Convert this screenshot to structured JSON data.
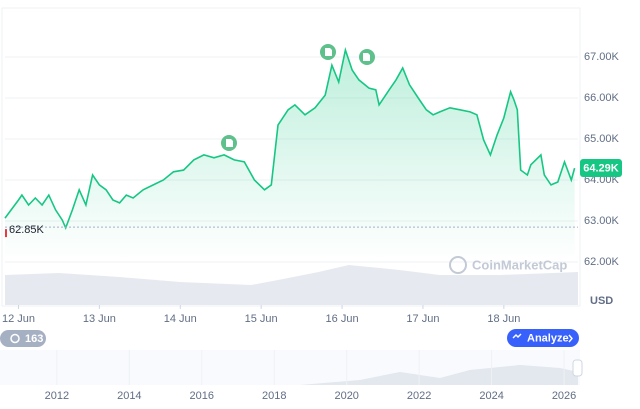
{
  "chart_data": {
    "type": "line",
    "color": "#16c784",
    "x": [
      -4,
      0,
      1,
      3,
      5,
      7,
      9,
      11,
      13,
      14,
      16,
      18,
      20,
      22,
      24,
      26,
      28,
      30,
      32,
      34,
      37,
      40,
      43,
      46,
      49,
      52,
      55,
      58,
      61,
      64,
      67,
      70,
      73,
      75,
      77,
      80,
      82,
      85,
      88,
      91,
      93,
      95,
      97,
      99,
      101,
      104,
      106,
      107,
      110,
      112,
      114,
      116,
      119,
      121,
      123,
      125,
      128,
      131,
      134,
      136,
      138,
      140,
      142,
      144,
      146,
      147,
      148,
      149,
      151,
      152,
      155,
      156,
      158,
      160,
      162,
      164,
      165
    ],
    "values": [
      63.07,
      63.51,
      63.63,
      63.39,
      63.56,
      63.39,
      63.63,
      63.27,
      63.02,
      62.83,
      63.27,
      63.76,
      63.39,
      64.12,
      63.88,
      63.76,
      63.51,
      63.44,
      63.63,
      63.56,
      63.76,
      63.88,
      64.0,
      64.2,
      64.24,
      64.49,
      64.61,
      64.54,
      64.61,
      64.49,
      64.44,
      64.0,
      63.76,
      63.88,
      65.34,
      65.71,
      65.83,
      65.59,
      65.76,
      66.07,
      66.8,
      66.39,
      67.17,
      66.68,
      66.44,
      66.24,
      66.2,
      65.83,
      66.2,
      66.44,
      66.73,
      66.32,
      65.95,
      65.71,
      65.59,
      65.66,
      65.76,
      65.71,
      65.66,
      65.59,
      64.98,
      64.61,
      65.1,
      65.51,
      66.15,
      65.95,
      65.71,
      64.24,
      64.12,
      64.37,
      64.61,
      64.12,
      63.88,
      63.95,
      64.44,
      64.0,
      64.29
    ],
    "xlim": [
      -4,
      166
    ],
    "xticks": [
      {
        "value": 0,
        "label": "12 Jun"
      },
      {
        "value": 24,
        "label": "13 Jun"
      },
      {
        "value": 48,
        "label": "14 Jun"
      },
      {
        "value": 72,
        "label": "15 Jun"
      },
      {
        "value": 96,
        "label": "16 Jun"
      },
      {
        "value": 120,
        "label": "17 Jun"
      },
      {
        "value": 144,
        "label": "18 Jun"
      }
    ],
    "ylim": [
      60.95,
      67.95
    ],
    "yticks": [
      {
        "value": 67,
        "label": "67.00K"
      },
      {
        "value": 66,
        "label": "66.00K"
      },
      {
        "value": 65,
        "label": "65.00K"
      },
      {
        "value": 64,
        "label": "64.00K"
      },
      {
        "value": 63,
        "label": "63.00K"
      },
      {
        "value": 62,
        "label": "62.00K"
      }
    ],
    "grid": true,
    "open": {
      "value": 62.85,
      "label": "62.85K"
    },
    "last": {
      "value": 64.29,
      "label": "64.29K"
    },
    "currency": "USD",
    "watermark": "CoinMarketCap",
    "volume": {
      "x": [
        -4,
        12,
        30,
        48,
        69,
        77,
        89,
        98,
        113,
        125,
        143,
        166
      ],
      "values": [
        30,
        32,
        28,
        23,
        20,
        25,
        33,
        40,
        35,
        30,
        30,
        33
      ]
    },
    "navigator": {
      "xlim": [
        2010.43,
        2026.44
      ],
      "xticks": [
        2012,
        2014,
        2016,
        2018,
        2020,
        2022,
        2024,
        2026
      ]
    },
    "buttons": {
      "count": "163",
      "analyze": "Analyze"
    }
  }
}
